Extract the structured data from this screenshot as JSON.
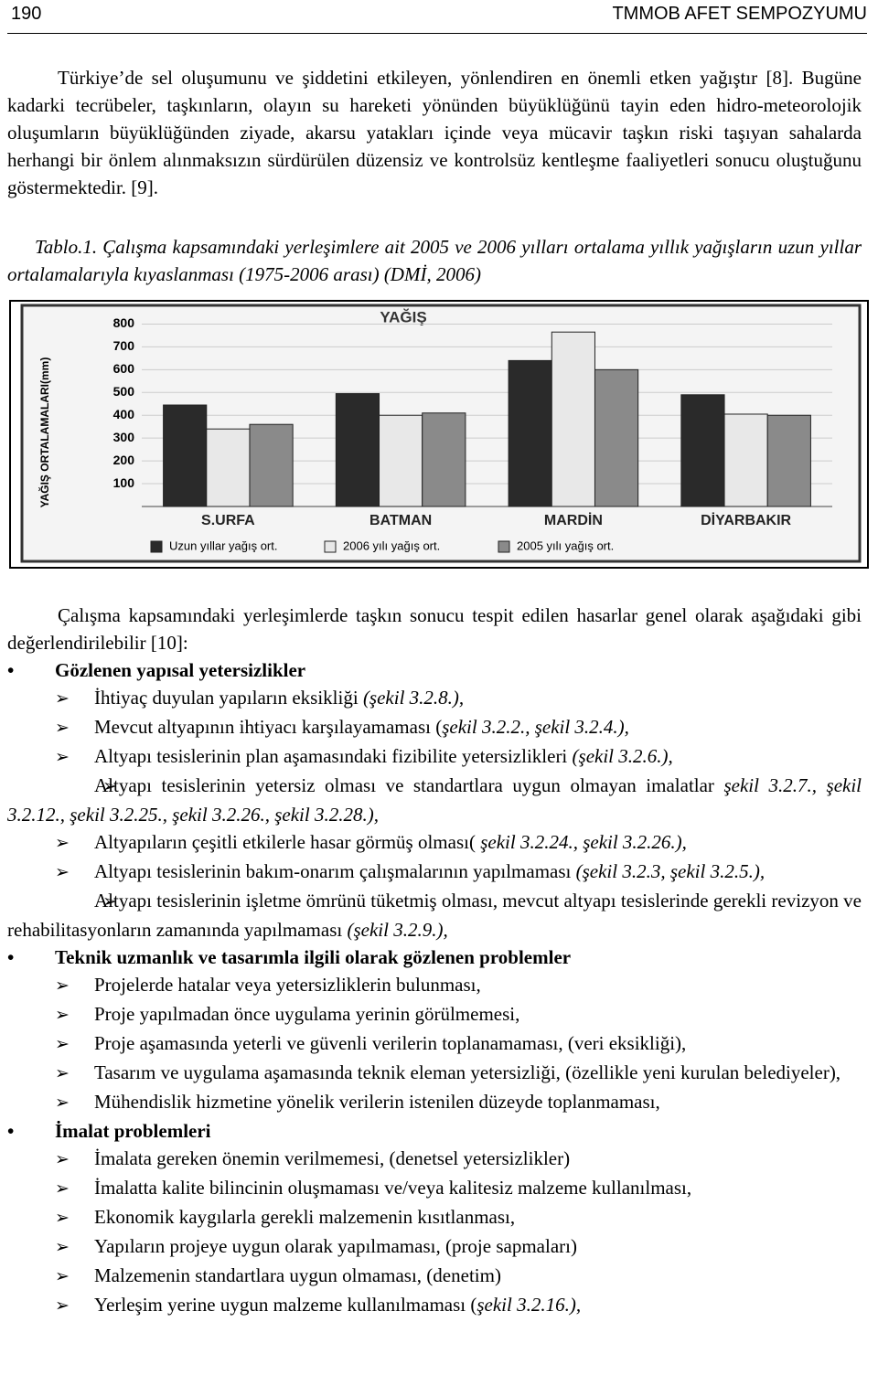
{
  "header": {
    "page_number": "190",
    "title": "TMMOB AFET SEMPOZYUMU"
  },
  "paragraph1": "Türkiye’de sel oluşumunu ve şiddetini etkileyen, yönlendiren en önemli etken yağıştır [8]. Bugüne kadarki tecrübeler, taşkınların, olayın su hareketi yönünden büyüklüğünü tayin eden hidro-meteorolojik oluşumların büyüklüğünden ziyade, akarsu yatakları içinde veya mücavir taşkın riski taşıyan sahalarda herhangi bir önlem alınmaksızın sürdürülen düzensiz ve kontrolsüz kentleşme faaliyetleri sonucu oluştuğunu göstermektedir. [9].",
  "caption": "Tablo.1. Çalışma kapsamındaki yerleşimlere ait 2005 ve 2006 yılları ortalama yıllık yağışların uzun yıllar ortalamalarıyla kıyaslanması (1975-2006 arası) (DMİ, 2006)",
  "chart_data": {
    "type": "bar",
    "title": "YAĞIŞ",
    "y_label": "YAĞIŞ ORTALAMALARI(mm)",
    "categories": [
      "S.URFA",
      "BATMAN",
      "MARDİN",
      "DİYARBAKIR"
    ],
    "series": [
      {
        "name": "Uzun yıllar yağış ort.",
        "color": "#2a2a2a",
        "values": [
          445,
          495,
          640,
          490
        ]
      },
      {
        "name": "2006 yılı yağış ort.",
        "color": "#e8e8e8",
        "values": [
          340,
          400,
          765,
          405
        ]
      },
      {
        "name": "2005 yılı yağış ort.",
        "color": "#8a8a8a",
        "values": [
          360,
          410,
          600,
          400
        ]
      }
    ],
    "ylim": [
      0,
      850
    ],
    "yticks": [
      100,
      200,
      300,
      400,
      500,
      600,
      700,
      800
    ],
    "grid": true,
    "legend": "bottom"
  },
  "paragraph2": "Çalışma kapsamındaki yerleşimlerde taşkın sonucu tespit edilen hasarlar genel olarak aşağıdaki gibi değerlendirilebilir [10]:",
  "sections": [
    {
      "heading": "Gözlenen yapısal yetersizlikler",
      "items": [
        {
          "text": "İhtiyaç duyulan yapıların eksikliği ",
          "ref": "(şekil 3.2.8.),"
        },
        {
          "text": "Mevcut altyapının ihtiyacı karşılayamaması (",
          "ref": "şekil 3.2.2., şekil 3.2.4.),"
        },
        {
          "text": "Altyapı tesislerinin plan aşamasındaki fizibilite yetersizlikleri ",
          "ref": "(şekil 3.2.6.),"
        },
        {
          "text": "Altyapı tesislerinin yetersiz olması ve standartlara uygun olmayan imalatlar ",
          "ref": "şekil 3.2.7., şekil 3.2.12., şekil 3.2.25., şekil 3.2.26., şekil 3.2.28.),"
        },
        {
          "text": "Altyapıların çeşitli etkilerle hasar görmüş olması( ",
          "ref": "şekil 3.2.24., şekil 3.2.26.),"
        },
        {
          "text": "Altyapı tesislerinin bakım-onarım çalışmalarının yapılmaması ",
          "ref": "(şekil 3.2.3, şekil 3.2.5.),"
        },
        {
          "text": "Altyapı tesislerinin işletme ömrünü tüketmiş olması, mevcut altyapı tesislerinde gerekli revizyon ve rehabilitasyonların zamanında yapılmaması ",
          "ref": "(şekil 3.2.9.),"
        }
      ]
    },
    {
      "heading": "Teknik uzmanlık ve tasarımla ilgili olarak gözlenen problemler",
      "items": [
        {
          "text": "Projelerde hatalar veya yetersizliklerin bulunması,"
        },
        {
          "text": "Proje yapılmadan önce uygulama yerinin görülmemesi,"
        },
        {
          "text": "Proje aşamasında yeterli ve güvenli verilerin toplanamaması, (veri eksikliği),"
        },
        {
          "text": "Tasarım ve uygulama aşamasında teknik eleman yetersizliği, (özellikle yeni kurulan belediyeler),"
        },
        {
          "text": "Mühendislik hizmetine yönelik verilerin istenilen düzeyde toplanmaması,"
        }
      ]
    },
    {
      "heading": "İmalat problemleri",
      "items": [
        {
          "text": "İmalata gereken önemin verilmemesi, (denetsel yetersizlikler)"
        },
        {
          "text": "İmalatta kalite bilincinin oluşmaması ve/veya kalitesiz malzeme kullanılması,"
        },
        {
          "text": "Ekonomik kaygılarla gerekli malzemenin kısıtlanması,"
        },
        {
          "text": "Yapıların projeye uygun olarak yapılmaması, (proje sapmaları)"
        },
        {
          "text": "Malzemenin standartlara uygun olmaması, (denetim)"
        },
        {
          "text": "Yerleşim yerine uygun malzeme kullanılmaması (",
          "ref": "şekil 3.2.16.),"
        }
      ]
    }
  ]
}
